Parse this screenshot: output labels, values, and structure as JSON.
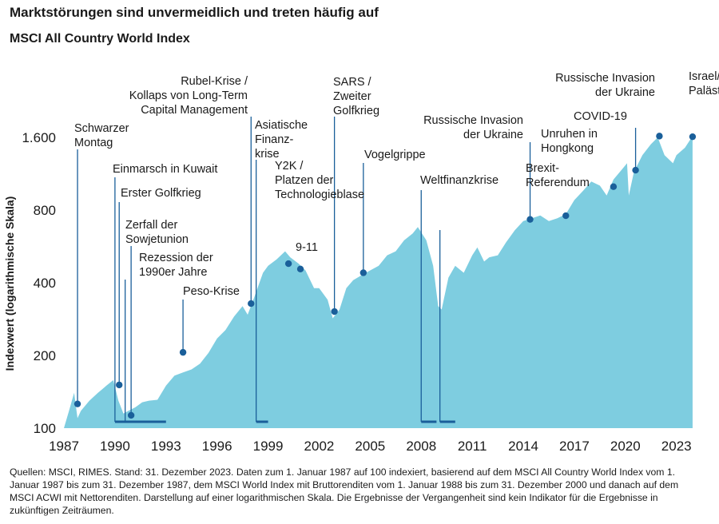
{
  "chart_data": {
    "type": "area",
    "title": "Marktstörungen sind unvermeidlich und treten häufig auf",
    "subtitle": "MSCI All Country World Index",
    "ylabel": "Indexwert (logarithmische Skala)",
    "xlabel": "",
    "yscale": "log",
    "ylim": [
      100,
      2000
    ],
    "xlim": [
      1987,
      2024
    ],
    "yticks": [
      100,
      200,
      400,
      800,
      1600
    ],
    "ytick_labels": [
      "100",
      "200",
      "400",
      "800",
      "1.600"
    ],
    "xticks": [
      "1987",
      "1990",
      "1993",
      "1996",
      "1999",
      "2002",
      "2005",
      "2008",
      "2011",
      "2014",
      "2017",
      "2020",
      "2023"
    ],
    "area_color": "#7ecde0",
    "marker_color": "#1a5f9a",
    "series": [
      {
        "x": [
          1987.0,
          1987.3,
          1987.6,
          1987.8,
          1988.0,
          1988.5,
          1989.0,
          1989.5,
          1989.9,
          1990.2,
          1990.5,
          1990.8,
          1991.2,
          1991.6,
          1992.0,
          1992.5,
          1993.0,
          1993.5,
          1994.0,
          1994.5,
          1995.0,
          1995.5,
          1996.0,
          1996.5,
          1997.0,
          1997.5,
          1997.8,
          1998.2,
          1998.7,
          1999.0,
          1999.5,
          2000.0,
          2000.3,
          2000.8,
          2001.2,
          2001.7,
          2002.0,
          2002.5,
          2002.8,
          2003.2,
          2003.6,
          2004.0,
          2004.5,
          2005.0,
          2005.5,
          2006.0,
          2006.5,
          2007.0,
          2007.5,
          2007.8,
          2008.3,
          2008.7,
          2009.0,
          2009.2,
          2009.6,
          2010.0,
          2010.5,
          2011.0,
          2011.3,
          2011.7,
          2012.0,
          2012.5,
          2013.0,
          2013.5,
          2014.0,
          2014.5,
          2015.0,
          2015.5,
          2016.0,
          2016.5,
          2017.0,
          2017.5,
          2018.0,
          2018.5,
          2018.9,
          2019.3,
          2019.8,
          2020.1,
          2020.2,
          2020.5,
          2021.0,
          2021.5,
          2021.9,
          2022.3,
          2022.8,
          2023.0,
          2023.5,
          2023.95
        ],
        "values": [
          100,
          118,
          140,
          110,
          118,
          130,
          140,
          150,
          158,
          130,
          115,
          118,
          122,
          128,
          130,
          131,
          150,
          165,
          170,
          175,
          185,
          205,
          235,
          255,
          290,
          320,
          295,
          350,
          440,
          470,
          500,
          540,
          510,
          480,
          450,
          380,
          380,
          340,
          285,
          310,
          380,
          410,
          430,
          450,
          470,
          520,
          540,
          600,
          640,
          680,
          600,
          470,
          320,
          310,
          420,
          470,
          440,
          520,
          560,
          490,
          510,
          520,
          590,
          660,
          720,
          740,
          760,
          720,
          740,
          770,
          880,
          960,
          1050,
          1010,
          920,
          1070,
          1180,
          1250,
          920,
          1150,
          1350,
          1500,
          1600,
          1350,
          1250,
          1350,
          1450,
          1620
        ]
      }
    ],
    "events": [
      {
        "label": "Schwarzer Montag",
        "x": 1987.8,
        "y": 126,
        "type": "dot"
      },
      {
        "label": "Einmarsch in Kuwait",
        "x_start": 1990.0,
        "x_end": 1990.7,
        "type": "range"
      },
      {
        "label": "Erster Golfkrieg",
        "x": 1990.25,
        "y": 151,
        "type": "dot"
      },
      {
        "label": "Zerfall der Sowjetunion",
        "x": 1990.95,
        "y": 113,
        "type": "dot"
      },
      {
        "label": "Rezession der 1990er Jahre",
        "x_start": 1990.6,
        "x_end": 1993.0,
        "type": "range"
      },
      {
        "label": "Peso-Krise",
        "x": 1994.0,
        "y": 206,
        "type": "dot"
      },
      {
        "label": "Rubel-Krise / Kollaps von Long-Term Capital Management",
        "x": 1998.0,
        "y": 328,
        "type": "dot"
      },
      {
        "label": "Asiatische Finanzkrise",
        "x_start": 1998.3,
        "x_end": 1999.0,
        "type": "range"
      },
      {
        "label": "Y2K / Platzen der Technologieblase",
        "x": 2000.2,
        "y": 480,
        "type": "dot"
      },
      {
        "label": "9-11",
        "x": 2000.9,
        "y": 456,
        "type": "dot"
      },
      {
        "label": "SARS / Zweiter Golfkrieg",
        "x": 2002.9,
        "y": 304,
        "type": "dot"
      },
      {
        "label": "Vogelgrippe",
        "x": 2004.6,
        "y": 440,
        "type": "dot"
      },
      {
        "label": "Weltfinanzkrise",
        "x_start": 2008.0,
        "x_end": 2008.9,
        "type": "range"
      },
      {
        "label": "Weltfinanzkrise",
        "x_start": 2009.1,
        "x_end": 2010.0,
        "type": "range"
      },
      {
        "label": "Russische Invasion der Ukraine",
        "x": 2014.4,
        "y": 732,
        "type": "dot"
      },
      {
        "label": "Brexit-Referendum",
        "x": 2016.5,
        "y": 758,
        "type": "dot"
      },
      {
        "label": "Unruhen in Hongkong",
        "x": 2019.3,
        "y": 1000,
        "type": "dot"
      },
      {
        "label": "COVID-19",
        "x": 2020.6,
        "y": 1170,
        "type": "dot"
      },
      {
        "label": "Russische Invasion der Ukraine",
        "x": 2022.0,
        "y": 1620,
        "type": "dot"
      },
      {
        "label": "Israel/ Palästina",
        "x": 2023.95,
        "y": 1610,
        "type": "dot"
      }
    ]
  },
  "footnote": "Quellen: MSCI, RIMES. Stand: 31. Dezember 2023. Daten zum 1. Januar 1987 auf 100 indexiert, basierend auf dem MSCI All Country World Index vom 1. Januar 1987 bis zum 31. Dezember 1987, dem MSCI World Index mit Bruttorenditen vom 1. Januar 1988 bis zum 31. Dezember 2000 und danach auf dem MSCI ACWI mit Nettorenditen. Darstellung auf einer logarithmischen Skala. Die Ergebnisse der Vergangenheit sind kein Indikator für die Ergebnisse in zukünftigen Zeiträumen."
}
